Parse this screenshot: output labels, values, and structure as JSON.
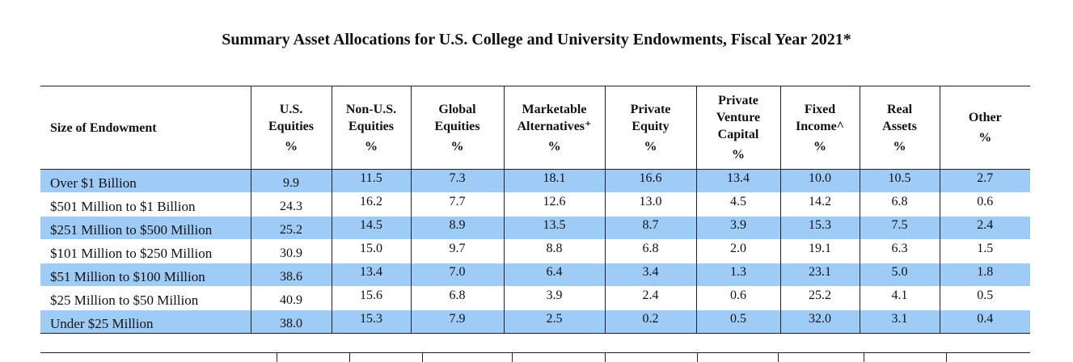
{
  "title": "Summary Asset Allocations for U.S. College and University Endowments, Fiscal Year 2021*",
  "headers": [
    {
      "lines": [
        "Size of Endowment"
      ],
      "pct": ""
    },
    {
      "lines": [
        "U.S.",
        "Equities"
      ],
      "pct": "%"
    },
    {
      "lines": [
        "Non-U.S.",
        "Equities"
      ],
      "pct": "%"
    },
    {
      "lines": [
        "Global",
        "Equities"
      ],
      "pct": "%"
    },
    {
      "lines": [
        "Marketable",
        "Alternatives⁺"
      ],
      "pct": "%"
    },
    {
      "lines": [
        "Private",
        "Equity"
      ],
      "pct": "%"
    },
    {
      "lines": [
        "Private",
        "Venture",
        "Capital"
      ],
      "pct": "%"
    },
    {
      "lines": [
        "Fixed",
        "Income^"
      ],
      "pct": "%"
    },
    {
      "lines": [
        "Real",
        "Assets"
      ],
      "pct": "%"
    },
    {
      "lines": [
        "Other"
      ],
      "pct": "%"
    }
  ],
  "rows": [
    [
      "Over $1 Billion",
      "9.9",
      "11.5",
      "7.3",
      "18.1",
      "16.6",
      "13.4",
      "10.0",
      "10.5",
      "2.7"
    ],
    [
      "$501 Million to $1 Billion",
      "24.3",
      "16.2",
      "7.7",
      "12.6",
      "13.0",
      "4.5",
      "14.2",
      "6.8",
      "0.6"
    ],
    [
      "$251 Million to $500 Million",
      "25.2",
      "14.5",
      "8.9",
      "13.5",
      "8.7",
      "3.9",
      "15.3",
      "7.5",
      "2.4"
    ],
    [
      "$101 Million to $250 Million",
      "30.9",
      "15.0",
      "9.7",
      "8.8",
      "6.8",
      "2.0",
      "19.1",
      "6.3",
      "1.5"
    ],
    [
      "$51 Million to $100 Million",
      "38.6",
      "13.4",
      "7.0",
      "6.4",
      "3.4",
      "1.3",
      "23.1",
      "5.0",
      "1.8"
    ],
    [
      "$25 Million to $50 Million",
      "40.9",
      "15.6",
      "6.8",
      "3.9",
      "2.4",
      "0.6",
      "25.2",
      "4.1",
      "0.5"
    ],
    [
      "Under $25 Million",
      "38.0",
      "15.3",
      "7.9",
      "2.5",
      "0.2",
      "0.5",
      "32.0",
      "3.1",
      "0.4"
    ]
  ],
  "colors": {
    "band": "#9fcbf7"
  }
}
